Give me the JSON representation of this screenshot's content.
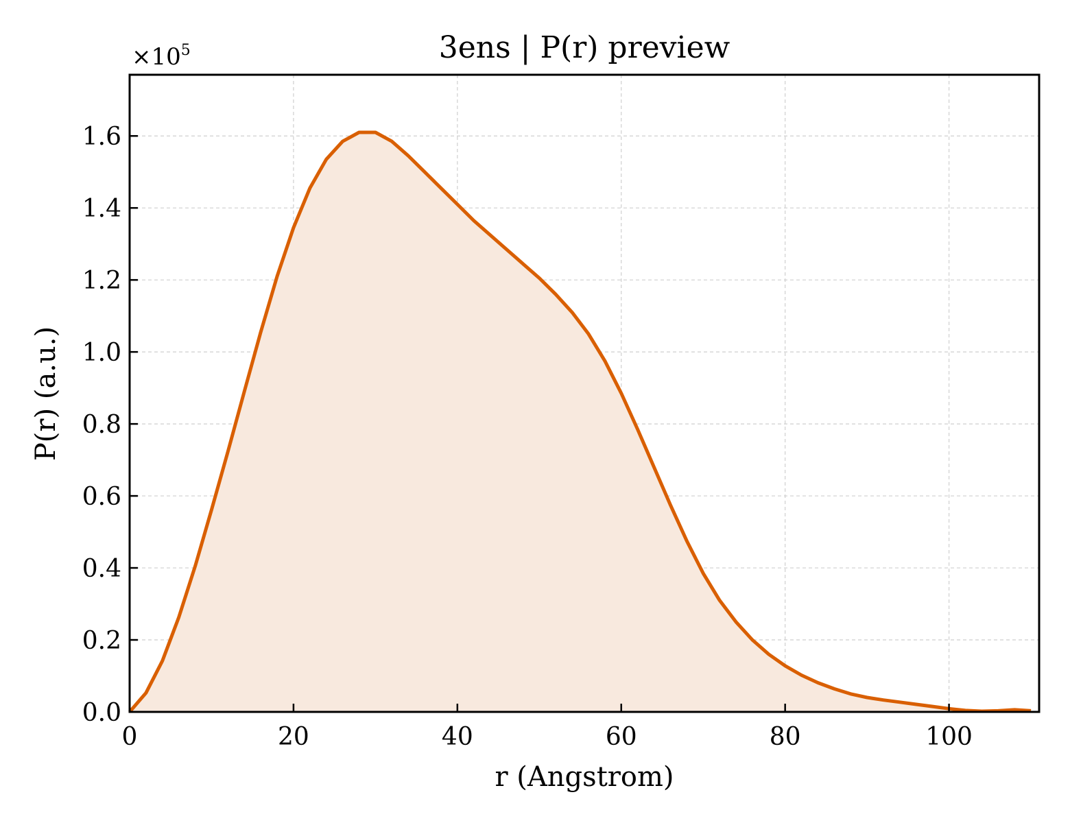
{
  "chart_data": {
    "type": "area",
    "title": "3ens | P(r) preview",
    "xlabel": "r (Angstrom)",
    "ylabel": "P(r) (a.u.)",
    "y_multiplier": "×10",
    "y_multiplier_exp": "5",
    "xlim": [
      0,
      111
    ],
    "ylim": [
      0,
      1.77
    ],
    "x_ticks": [
      0,
      20,
      40,
      60,
      80,
      100
    ],
    "x_tick_labels": [
      "0",
      "20",
      "40",
      "60",
      "80",
      "100"
    ],
    "y_ticks": [
      0,
      0.2,
      0.4,
      0.6,
      0.8,
      1.0,
      1.2,
      1.4,
      1.6
    ],
    "y_tick_labels": [
      "0.0",
      "0.2",
      "0.4",
      "0.6",
      "0.8",
      "1.0",
      "1.2",
      "1.4",
      "1.6"
    ],
    "grid": true,
    "line_color": "#d95f02",
    "fill_color": "#f8e9de",
    "series": [
      {
        "x": [
          0,
          2,
          4,
          6,
          8,
          10,
          12,
          14,
          16,
          18,
          20,
          22,
          24,
          26,
          28,
          30,
          32,
          34,
          36,
          38,
          40,
          42,
          44,
          46,
          48,
          50,
          52,
          54,
          56,
          58,
          60,
          62,
          64,
          66,
          68,
          70,
          72,
          74,
          76,
          78,
          80,
          82,
          84,
          86,
          88,
          90,
          92,
          94,
          96,
          98,
          100,
          102,
          104,
          106,
          108,
          110
        ],
        "y": [
          0.0,
          0.053,
          0.142,
          0.263,
          0.405,
          0.562,
          0.724,
          0.89,
          1.055,
          1.21,
          1.345,
          1.455,
          1.535,
          1.585,
          1.61,
          1.61,
          1.585,
          1.545,
          1.5,
          1.455,
          1.41,
          1.365,
          1.325,
          1.285,
          1.245,
          1.205,
          1.16,
          1.11,
          1.05,
          0.975,
          0.885,
          0.785,
          0.68,
          0.575,
          0.475,
          0.385,
          0.31,
          0.25,
          0.2,
          0.16,
          0.128,
          0.102,
          0.081,
          0.064,
          0.05,
          0.04,
          0.033,
          0.027,
          0.021,
          0.015,
          0.009,
          0.004,
          0.002,
          0.003,
          0.006,
          0.003
        ]
      }
    ]
  }
}
